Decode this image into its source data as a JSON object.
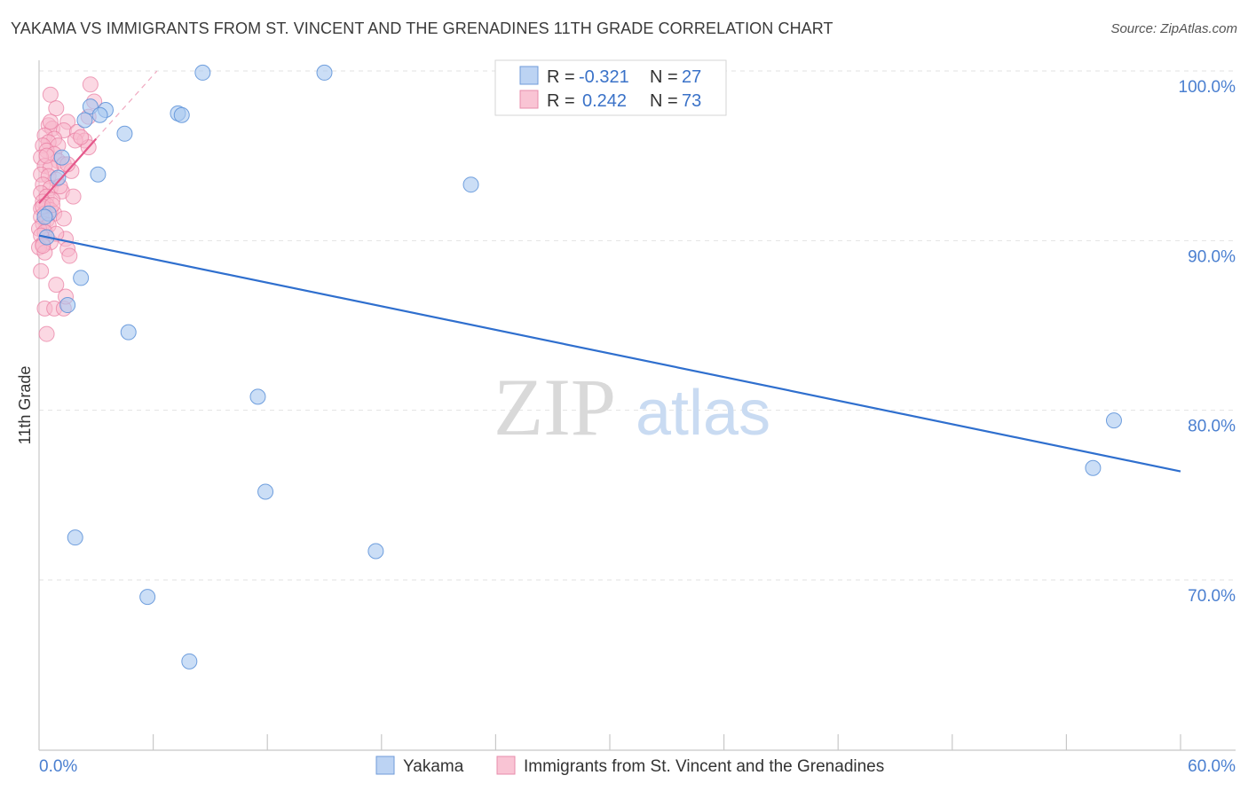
{
  "header": {
    "title": "YAKAMA VS IMMIGRANTS FROM ST. VINCENT AND THE GRENADINES 11TH GRADE CORRELATION CHART",
    "source": "Source: ZipAtlas.com"
  },
  "watermark": {
    "zip": "ZIP",
    "atlas": "atlas"
  },
  "legend": {
    "r_label": "R =",
    "n_label": "N =",
    "rows": [
      {
        "series": "Yakama",
        "r": "-0.321",
        "n": "27",
        "color": "#a8c8f0"
      },
      {
        "series": "Immigrants from St. Vincent and the Grenadines",
        "r": "0.242",
        "n": "73",
        "color": "#f8b8cc"
      }
    ]
  },
  "chart_data": {
    "type": "scatter",
    "title": "YAKAMA VS IMMIGRANTS FROM ST. VINCENT AND THE GRENADINES 11TH GRADE CORRELATION CHART",
    "xlabel": "",
    "ylabel": "11th Grade",
    "xlim": [
      0,
      60
    ],
    "ylim": [
      60,
      101.5
    ],
    "x_tick_labels": [
      "0.0%",
      "60.0%"
    ],
    "y_ticks": [
      100,
      90,
      80,
      70
    ],
    "y_tick_labels": [
      "100.0%",
      "90.0%",
      "80.0%",
      "70.0%"
    ],
    "grid": true,
    "series": [
      {
        "name": "Yakama",
        "color": "#a8c8f0",
        "stroke": "#5a90d8",
        "points": [
          [
            8.6,
            99.9
          ],
          [
            15.0,
            99.9
          ],
          [
            2.7,
            97.9
          ],
          [
            3.5,
            97.7
          ],
          [
            3.2,
            97.4
          ],
          [
            2.4,
            97.1
          ],
          [
            7.3,
            97.5
          ],
          [
            7.5,
            97.4
          ],
          [
            4.5,
            96.3
          ],
          [
            1.2,
            94.9
          ],
          [
            3.1,
            93.9
          ],
          [
            22.7,
            93.3
          ],
          [
            1.0,
            93.7
          ],
          [
            0.5,
            91.6
          ],
          [
            0.4,
            90.2
          ],
          [
            2.2,
            87.8
          ],
          [
            1.5,
            86.2
          ],
          [
            4.7,
            84.6
          ],
          [
            11.5,
            80.8
          ],
          [
            56.5,
            79.4
          ],
          [
            55.4,
            76.6
          ],
          [
            11.9,
            75.2
          ],
          [
            1.9,
            72.5
          ],
          [
            17.7,
            71.7
          ],
          [
            5.7,
            69.0
          ],
          [
            7.9,
            65.2
          ],
          [
            0.3,
            91.4
          ]
        ],
        "trend": {
          "x": [
            0,
            60
          ],
          "y": [
            90.3,
            76.4
          ]
        }
      },
      {
        "name": "Immigrants from St. Vincent and the Grenadines",
        "color": "#f8b8cc",
        "stroke": "#e87aa0",
        "points": [
          [
            2.7,
            99.2
          ],
          [
            0.6,
            98.6
          ],
          [
            2.9,
            98.2
          ],
          [
            0.9,
            97.8
          ],
          [
            2.6,
            97.3
          ],
          [
            1.5,
            97.0
          ],
          [
            0.5,
            96.8
          ],
          [
            0.7,
            96.6
          ],
          [
            1.3,
            96.5
          ],
          [
            2.0,
            96.4
          ],
          [
            0.3,
            96.2
          ],
          [
            0.8,
            96.0
          ],
          [
            2.4,
            95.9
          ],
          [
            0.5,
            95.8
          ],
          [
            0.2,
            95.6
          ],
          [
            1.0,
            95.6
          ],
          [
            2.6,
            95.5
          ],
          [
            0.4,
            95.3
          ],
          [
            0.8,
            95.1
          ],
          [
            0.1,
            94.9
          ],
          [
            1.0,
            94.7
          ],
          [
            1.3,
            94.5
          ],
          [
            0.3,
            94.4
          ],
          [
            0.6,
            94.3
          ],
          [
            1.7,
            94.1
          ],
          [
            0.1,
            93.9
          ],
          [
            0.5,
            93.8
          ],
          [
            0.9,
            93.6
          ],
          [
            0.2,
            93.3
          ],
          [
            0.6,
            93.1
          ],
          [
            1.2,
            92.9
          ],
          [
            0.1,
            92.8
          ],
          [
            0.4,
            92.6
          ],
          [
            1.8,
            92.6
          ],
          [
            0.7,
            92.4
          ],
          [
            0.2,
            92.3
          ],
          [
            0.4,
            92.1
          ],
          [
            0.1,
            91.9
          ],
          [
            0.6,
            91.8
          ],
          [
            0.3,
            91.6
          ],
          [
            0.8,
            91.6
          ],
          [
            0.1,
            91.4
          ],
          [
            1.3,
            91.3
          ],
          [
            0.4,
            91.2
          ],
          [
            0.2,
            91.0
          ],
          [
            0.5,
            90.9
          ],
          [
            0.0,
            90.7
          ],
          [
            0.3,
            90.5
          ],
          [
            0.1,
            90.3
          ],
          [
            1.4,
            90.1
          ],
          [
            0.6,
            89.9
          ],
          [
            0.2,
            89.8
          ],
          [
            0.0,
            89.6
          ],
          [
            1.5,
            89.5
          ],
          [
            0.3,
            89.3
          ],
          [
            1.6,
            89.1
          ],
          [
            0.1,
            88.2
          ],
          [
            0.9,
            87.4
          ],
          [
            0.3,
            86.0
          ],
          [
            0.8,
            86.0
          ],
          [
            1.3,
            86.0
          ],
          [
            0.4,
            84.5
          ],
          [
            1.4,
            86.7
          ],
          [
            1.9,
            95.9
          ],
          [
            2.2,
            96.1
          ],
          [
            0.6,
            97.0
          ],
          [
            0.2,
            92.0
          ],
          [
            0.7,
            92.1
          ],
          [
            1.1,
            93.2
          ],
          [
            0.4,
            95.0
          ],
          [
            1.5,
            94.5
          ],
          [
            0.9,
            90.4
          ],
          [
            0.2,
            89.7
          ]
        ],
        "trend": {
          "x": [
            0,
            3.0
          ],
          "y": [
            92.2,
            96.0
          ]
        },
        "trend_dashed": {
          "x": [
            3.0,
            6.2
          ],
          "y": [
            96.0,
            100.0
          ]
        }
      }
    ]
  }
}
